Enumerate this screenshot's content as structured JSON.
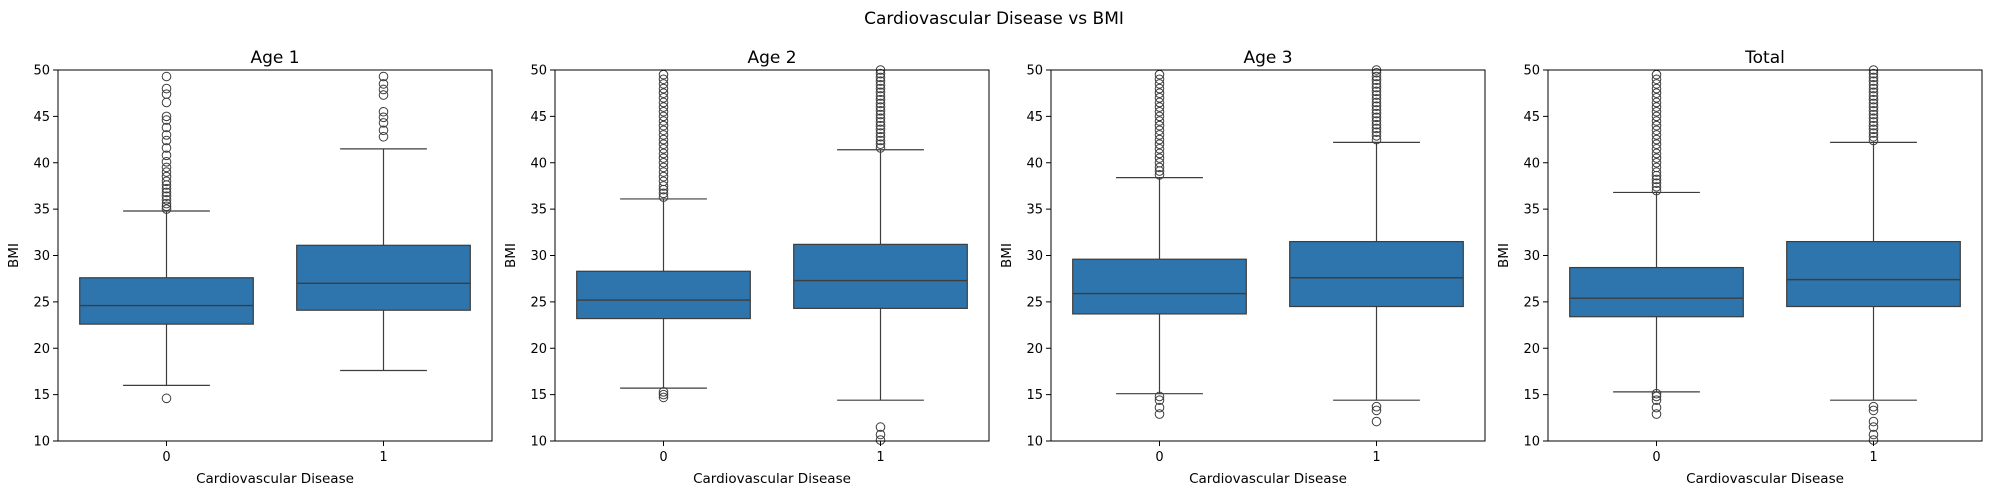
{
  "figure": {
    "title": "Cardiovascular Disease vs BMI"
  },
  "chart_data": [
    {
      "type": "box",
      "title": "Age 1",
      "xlabel": "Cardiovascular Disease",
      "ylabel": "BMI",
      "ylim": [
        10,
        50
      ],
      "yticks": [
        10,
        15,
        20,
        25,
        30,
        35,
        40,
        45,
        50
      ],
      "categories": [
        "0",
        "1"
      ],
      "color": "#2e75ad",
      "boxes": [
        {
          "category": "0",
          "whisker_low": 16.0,
          "q1": 22.6,
          "median": 24.6,
          "q3": 27.6,
          "whisker_high": 34.8,
          "outliers": [
            14.6,
            35.0,
            35.3,
            35.6,
            36.0,
            36.4,
            36.8,
            37.2,
            37.6,
            38.0,
            38.5,
            39.0,
            39.5,
            40.1,
            40.8,
            41.6,
            42.4,
            43.0,
            43.8,
            44.6,
            45.0,
            46.5,
            47.4,
            48.0,
            49.3
          ]
        },
        {
          "category": "1",
          "whisker_low": 17.6,
          "q1": 24.1,
          "median": 27.0,
          "q3": 31.1,
          "whisker_high": 41.5,
          "outliers": [
            42.8,
            43.5,
            44.3,
            44.9,
            45.5,
            47.3,
            47.9,
            48.5,
            49.3
          ]
        }
      ]
    },
    {
      "type": "box",
      "title": "Age 2",
      "xlabel": "Cardiovascular Disease",
      "ylabel": "BMI",
      "ylim": [
        10,
        50
      ],
      "yticks": [
        10,
        15,
        20,
        25,
        30,
        35,
        40,
        45,
        50
      ],
      "categories": [
        "0",
        "1"
      ],
      "color": "#2e75ad",
      "boxes": [
        {
          "category": "0",
          "whisker_low": 15.7,
          "q1": 23.2,
          "median": 25.2,
          "q3": 28.3,
          "whisker_high": 36.1,
          "outliers": [
            14.7,
            15.0,
            15.3,
            36.3,
            36.7,
            37.1,
            37.5,
            38.0,
            38.5,
            39.0,
            39.5,
            40.0,
            40.5,
            41.0,
            41.5,
            42.0,
            42.5,
            43.0,
            43.5,
            44.0,
            44.5,
            45.0,
            45.5,
            46.0,
            46.5,
            47.0,
            47.5,
            48.0,
            48.5,
            49.0,
            49.5
          ]
        },
        {
          "category": "1",
          "whisker_low": 14.4,
          "q1": 24.3,
          "median": 27.3,
          "q3": 31.2,
          "whisker_high": 41.4,
          "outliers": [
            10.1,
            10.7,
            11.5,
            41.6,
            42.0,
            42.4,
            42.8,
            43.2,
            43.6,
            44.0,
            44.4,
            44.8,
            45.2,
            45.6,
            46.0,
            46.4,
            46.8,
            47.2,
            47.6,
            48.0,
            48.4,
            48.8,
            49.2,
            49.6,
            50.0
          ]
        }
      ]
    },
    {
      "type": "box",
      "title": "Age 3",
      "xlabel": "Cardiovascular Disease",
      "ylabel": "BMI",
      "ylim": [
        10,
        50
      ],
      "yticks": [
        10,
        15,
        20,
        25,
        30,
        35,
        40,
        45,
        50
      ],
      "categories": [
        "0",
        "1"
      ],
      "color": "#2e75ad",
      "boxes": [
        {
          "category": "0",
          "whisker_low": 15.1,
          "q1": 23.7,
          "median": 25.9,
          "q3": 29.6,
          "whisker_high": 38.4,
          "outliers": [
            12.9,
            13.6,
            14.4,
            14.8,
            38.7,
            39.1,
            39.5,
            40.0,
            40.5,
            41.0,
            41.5,
            42.0,
            42.5,
            43.0,
            43.5,
            44.0,
            44.5,
            45.0,
            45.5,
            46.0,
            46.5,
            47.0,
            47.5,
            48.0,
            48.5,
            49.0,
            49.5
          ]
        },
        {
          "category": "1",
          "whisker_low": 14.4,
          "q1": 24.5,
          "median": 27.6,
          "q3": 31.5,
          "whisker_high": 42.2,
          "outliers": [
            12.1,
            13.3,
            13.7,
            42.5,
            42.9,
            43.3,
            43.7,
            44.1,
            44.5,
            44.9,
            45.3,
            45.7,
            46.1,
            46.5,
            46.9,
            47.3,
            47.7,
            48.1,
            48.5,
            48.9,
            49.3,
            49.7,
            50.0
          ]
        }
      ]
    },
    {
      "type": "box",
      "title": "Total",
      "xlabel": "Cardiovascular Disease",
      "ylabel": "BMI",
      "ylim": [
        10,
        50
      ],
      "yticks": [
        10,
        15,
        20,
        25,
        30,
        35,
        40,
        45,
        50
      ],
      "categories": [
        "0",
        "1"
      ],
      "color": "#2e75ad",
      "boxes": [
        {
          "category": "0",
          "whisker_low": 15.3,
          "q1": 23.4,
          "median": 25.4,
          "q3": 28.7,
          "whisker_high": 36.8,
          "outliers": [
            12.9,
            13.6,
            14.4,
            14.8,
            15.1,
            37.0,
            37.4,
            37.8,
            38.2,
            38.6,
            39.0,
            39.5,
            40.0,
            40.5,
            41.0,
            41.5,
            42.0,
            42.5,
            43.0,
            43.5,
            44.0,
            44.5,
            45.0,
            45.5,
            46.0,
            46.5,
            47.0,
            47.5,
            48.0,
            48.5,
            49.0,
            49.5
          ]
        },
        {
          "category": "1",
          "whisker_low": 14.4,
          "q1": 24.5,
          "median": 27.4,
          "q3": 31.5,
          "whisker_high": 42.2,
          "outliers": [
            10.1,
            10.7,
            11.5,
            12.1,
            13.3,
            13.7,
            42.4,
            42.8,
            43.2,
            43.6,
            44.0,
            44.4,
            44.8,
            45.2,
            45.6,
            46.0,
            46.4,
            46.8,
            47.2,
            47.6,
            48.0,
            48.4,
            48.8,
            49.2,
            49.6,
            50.0
          ]
        }
      ]
    }
  ]
}
